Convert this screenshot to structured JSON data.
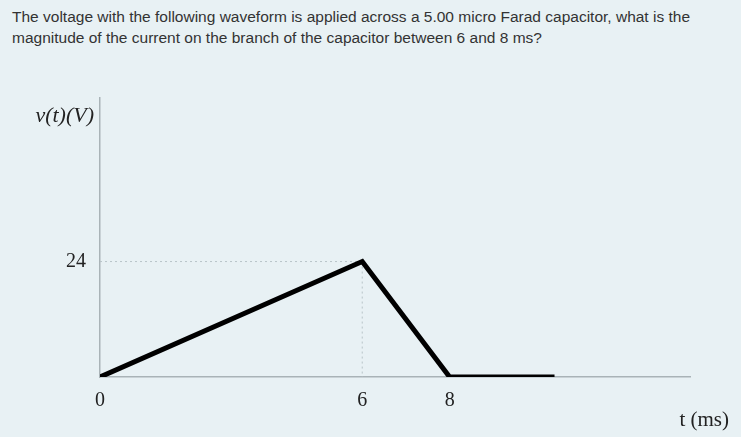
{
  "question": "The voltage with the following waveform is applied across a 5.00 micro Farad capacitor, what is the magnitude of the current on the branch of the capacitor between 6 and 8 ms?",
  "chart_data": {
    "type": "line",
    "x_label": "t (ms)",
    "y_label": "v(t)(V)",
    "x": [
      0,
      6,
      8,
      10.4
    ],
    "values": [
      0,
      24,
      0,
      0
    ],
    "color": "#000000",
    "xlim": [
      0,
      13.5
    ],
    "ylim": [
      0,
      58
    ],
    "xticks": [
      0,
      6,
      8
    ],
    "yticks": [
      24
    ],
    "grid": false
  }
}
